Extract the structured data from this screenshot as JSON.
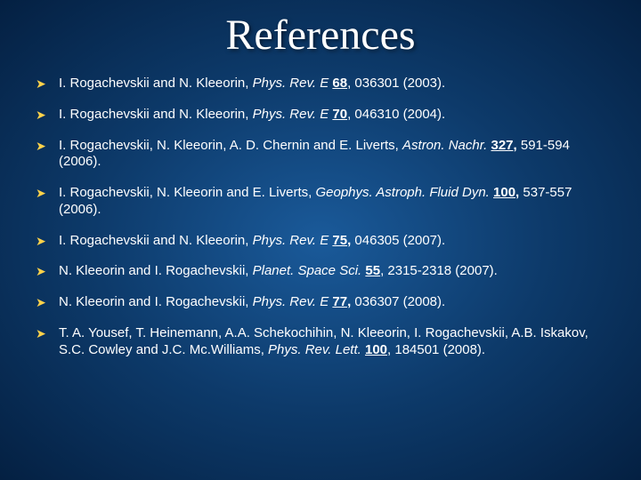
{
  "background": {
    "center_color": "#1a5a9a",
    "mid_color": "#0d3a6a",
    "edge_color": "#042042",
    "text_color": "#ffffff",
    "bullet_color": "#ffd24a"
  },
  "title": {
    "text": "References",
    "font_family": "Times New Roman",
    "font_size_pt": 36,
    "color": "#ffffff"
  },
  "list": {
    "font_size_pt": 15,
    "items": [
      {
        "pre": "I. Rogachevskii and N. Kleeorin, ",
        "journal": "Phys. Rev. E",
        "mid": " ",
        "volume": "68",
        "post": ", 036301 (2003)."
      },
      {
        "pre": "I. Rogachevskii and N. Kleeorin, ",
        "journal": "Phys. Rev. E",
        "mid": " ",
        "volume": "70",
        "post": ", 046310 (2004)."
      },
      {
        "pre": "I. Rogachevskii, N. Kleeorin, A. D. Chernin   and E. Liverts, ",
        "journal": "Astron. Nachr.",
        "mid": " ",
        "volume": "327,",
        "post": " 591-594 (2006)."
      },
      {
        "pre": "I. Rogachevskii, N. Kleeorin and E. Liverts, ",
        "journal": "Geophys. Astroph. Fluid Dyn.",
        "mid": " ",
        "volume": "100,",
        "post": " 537-557 (2006)."
      },
      {
        "pre": "I. Rogachevskii and N. Kleeorin, ",
        "journal": "Phys. Rev. E",
        "mid": " ",
        "volume": "75,",
        "post": " 046305 (2007)."
      },
      {
        "pre": "N. Kleeorin and I. Rogachevskii, ",
        "journal": "Planet. Space Sci.",
        "mid": " ",
        "volume": "55",
        "post": ", 2315-2318 (2007)."
      },
      {
        "pre": "N. Kleeorin and I. Rogachevskii, ",
        "journal": "Phys. Rev. E",
        "mid": " ",
        "volume": "77,",
        "post": "  036307 (2008)."
      },
      {
        "pre": "T. A. Yousef, T. Heinemann, A.A. Schekochihin, N. Kleeorin,              I. Rogachevskii, A.B. Iskakov, S.C. Cowley and J.C. Mc.Williams, ",
        "journal": "Phys. Rev. Lett.",
        "mid": " ",
        "volume": "100",
        "post": ", 184501 (2008)."
      }
    ]
  }
}
